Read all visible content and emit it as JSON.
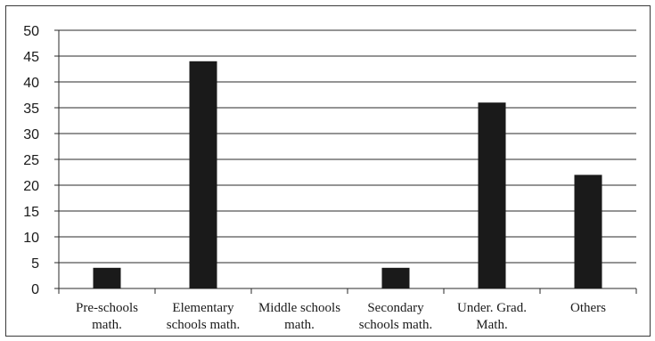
{
  "chart_data": {
    "type": "bar",
    "categories": [
      [
        "Pre-schools",
        "math."
      ],
      [
        "Elementary",
        "schools math."
      ],
      [
        "Middle schools",
        "math."
      ],
      [
        "Secondary",
        "schools math."
      ],
      [
        "Under. Grad.",
        "Math."
      ],
      [
        "Others"
      ]
    ],
    "values": [
      4,
      44,
      0,
      4,
      36,
      22
    ],
    "title": "",
    "xlabel": "",
    "ylabel": "",
    "ylim": [
      0,
      50
    ],
    "yticks": [
      "0",
      "5",
      "10",
      "15",
      "20",
      "25",
      "30",
      "35",
      "40",
      "45",
      "50"
    ],
    "grid": true,
    "legend": "none",
    "bar_color": "#1a1a1a",
    "grid_color": "#2a2a2a"
  }
}
